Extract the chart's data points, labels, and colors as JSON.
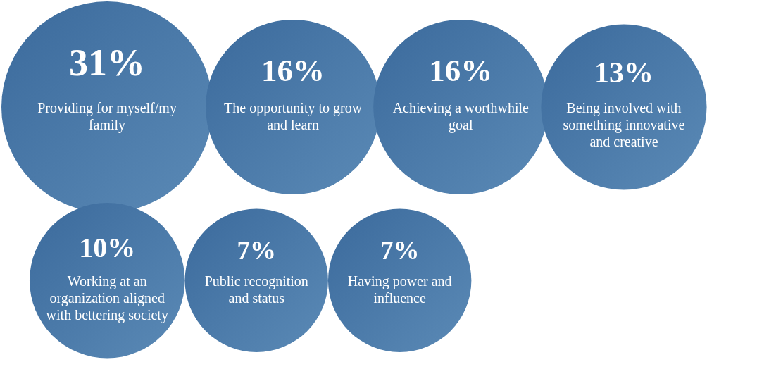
{
  "chart_data": {
    "type": "other",
    "categories": [
      "Providing for myself/my family",
      "The opportunity to grow and learn",
      "Achieving a worthwhile goal",
      "Being involved with something innovative and creative",
      "Working at an organization aligned with bettering society",
      "Public recognition and status",
      "Having power and influence"
    ],
    "values": [
      31,
      16,
      16,
      13,
      10,
      7,
      7
    ],
    "value_labels": [
      "31%",
      "16%",
      "16%",
      "13%",
      "10%",
      "7%",
      "7%"
    ],
    "colors": [
      "#3b6a9c",
      "#3b6a9c",
      "#3b6a9c",
      "#3b6a9c",
      "#3b6a9c",
      "#3b6a9c",
      "#3b6a9c"
    ]
  }
}
